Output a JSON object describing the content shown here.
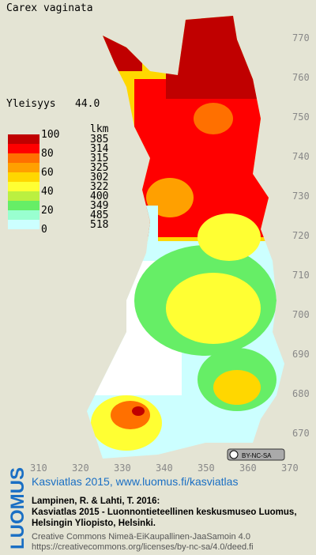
{
  "title": "Carex vaginata",
  "frequency": {
    "label": "Yleisyys",
    "value": "44.0"
  },
  "legend": {
    "scale_labels": [
      100,
      80,
      60,
      40,
      20,
      0
    ],
    "count_header": "lkm",
    "counts": [
      385,
      314,
      315,
      325,
      302,
      322,
      400,
      349,
      485,
      518
    ],
    "colors": [
      "#c00000",
      "#ff0000",
      "#ff7000",
      "#ffa000",
      "#ffd700",
      "#ffff33",
      "#bbf040",
      "#66ee66",
      "#99ffd0",
      "#ccffff"
    ]
  },
  "y_labels": [
    770,
    760,
    750,
    740,
    730,
    720,
    710,
    700,
    690,
    680,
    670
  ],
  "x_labels": [
    310,
    320,
    330,
    340,
    350,
    360,
    370
  ],
  "license_badge": "BY-NC-SA",
  "footer": {
    "brand": "LUOMUS",
    "link": "Kasviatlas 2015, www.luomus.fi/kasviatlas",
    "citation": [
      "Lampinen, R. & Lahti, T. 2016:",
      "Kasviatlas 2015 - Luonnontieteellinen keskusmuseo Luomus,",
      "Helsingin Yliopisto, Helsinki."
    ],
    "license": [
      "Creative Commons Nimeä-EiKaupallinen-JaaSamoin 4.0",
      "https://creativecommons.org/licenses/by-nc-sa/4.0/deed.fi"
    ]
  }
}
